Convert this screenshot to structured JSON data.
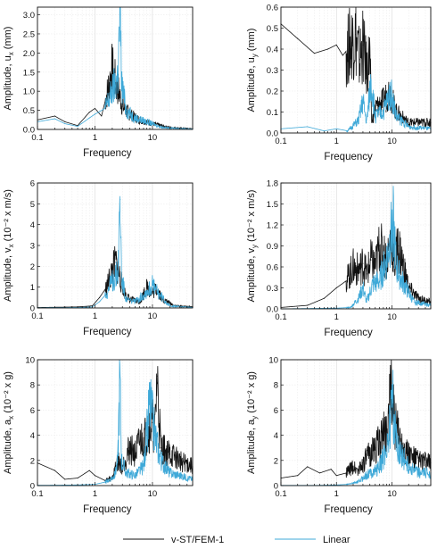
{
  "legend": [
    {
      "name": "v-ST/FEM-1",
      "color": "#111111"
    },
    {
      "name": "Linear",
      "color": "#3fa9d8"
    }
  ],
  "chart_data": [
    {
      "type": "line",
      "id": "ux",
      "ylabel": {
        "main": "Amplitude, u",
        "sub": "x",
        "unit": " (mm)"
      },
      "xlabel": "Frequency",
      "xscale": "log",
      "xlim": [
        0.1,
        50
      ],
      "ylim": [
        0,
        3.2
      ],
      "xticks": [
        "0.1",
        "1",
        "10"
      ],
      "yticks": [
        "0.0",
        "0.5",
        "1.0",
        "1.5",
        "2.0",
        "2.5",
        "3.0"
      ],
      "ytick_values": [
        0,
        0.5,
        1.0,
        1.5,
        2.0,
        2.5,
        3.0
      ],
      "grid": true,
      "series": [
        {
          "name": "v-ST/FEM-1",
          "points": [
            [
              0.1,
              0.25
            ],
            [
              0.2,
              0.35
            ],
            [
              0.3,
              0.2
            ],
            [
              0.5,
              0.1
            ],
            [
              0.8,
              0.45
            ],
            [
              1.0,
              0.55
            ],
            [
              1.3,
              0.35
            ],
            [
              1.6,
              0.9
            ],
            [
              2.0,
              1.6
            ],
            [
              2.3,
              1.2
            ],
            [
              2.6,
              1.0
            ],
            [
              3.0,
              0.6
            ],
            [
              4,
              0.4
            ],
            [
              6,
              0.25
            ],
            [
              10,
              0.15
            ],
            [
              20,
              0.05
            ],
            [
              50,
              0.02
            ]
          ]
        },
        {
          "name": "Linear",
          "points": [
            [
              0.1,
              0.2
            ],
            [
              0.2,
              0.28
            ],
            [
              0.3,
              0.15
            ],
            [
              0.5,
              0.08
            ],
            [
              0.8,
              0.3
            ],
            [
              1.0,
              0.4
            ],
            [
              1.5,
              0.55
            ],
            [
              2.0,
              1.0
            ],
            [
              2.5,
              1.4
            ],
            [
              2.75,
              3.05
            ],
            [
              2.9,
              1.2
            ],
            [
              3.5,
              0.5
            ],
            [
              5,
              0.3
            ],
            [
              8,
              0.2
            ],
            [
              15,
              0.05
            ],
            [
              50,
              0.01
            ]
          ]
        }
      ]
    },
    {
      "type": "line",
      "id": "uy",
      "ylabel": {
        "main": "Amplitude, u",
        "sub": "y",
        "unit": " (mm)"
      },
      "xlabel": "Frequency",
      "xscale": "log",
      "xlim": [
        0.1,
        50
      ],
      "ylim": [
        0,
        0.6
      ],
      "xticks": [
        "0.1",
        "1",
        "10"
      ],
      "yticks": [
        "0.0",
        "0.1",
        "0.2",
        "0.3",
        "0.4",
        "0.5",
        "0.6"
      ],
      "ytick_values": [
        0,
        0.1,
        0.2,
        0.3,
        0.4,
        0.5,
        0.6
      ],
      "grid": true,
      "series": [
        {
          "name": "v-ST/FEM-1",
          "points": [
            [
              0.1,
              0.52
            ],
            [
              0.2,
              0.45
            ],
            [
              0.4,
              0.38
            ],
            [
              0.7,
              0.4
            ],
            [
              1.0,
              0.42
            ],
            [
              1.3,
              0.37
            ],
            [
              1.6,
              0.4
            ],
            [
              2.2,
              0.47
            ],
            [
              2.6,
              0.35
            ],
            [
              3.0,
              0.42
            ],
            [
              3.5,
              0.3
            ],
            [
              4.0,
              0.37
            ],
            [
              4.3,
              0.05
            ],
            [
              5,
              0.12
            ],
            [
              7,
              0.15
            ],
            [
              9,
              0.2
            ],
            [
              12,
              0.1
            ],
            [
              20,
              0.05
            ],
            [
              50,
              0.05
            ]
          ]
        },
        {
          "name": "Linear",
          "points": [
            [
              0.1,
              0.02
            ],
            [
              0.3,
              0.03
            ],
            [
              0.6,
              0.01
            ],
            [
              1.0,
              0.02
            ],
            [
              1.6,
              0.01
            ],
            [
              2.5,
              0.06
            ],
            [
              3.0,
              0.15
            ],
            [
              3.5,
              0.05
            ],
            [
              4.2,
              0.25
            ],
            [
              5,
              0.08
            ],
            [
              7,
              0.1
            ],
            [
              9.5,
              0.2
            ],
            [
              12,
              0.08
            ],
            [
              20,
              0.03
            ],
            [
              50,
              0.02
            ]
          ]
        }
      ]
    },
    {
      "type": "line",
      "id": "vx",
      "ylabel": {
        "main": "Amplitude, v",
        "sub": "x",
        "unit": " (10⁻² x m/s)"
      },
      "xlabel": "Frequency",
      "xscale": "log",
      "xlim": [
        0.1,
        50
      ],
      "ylim": [
        0,
        6
      ],
      "xticks": [
        "0.1",
        "1",
        "10"
      ],
      "yticks": [
        "0",
        "1",
        "2",
        "3",
        "4",
        "5",
        "6"
      ],
      "ytick_values": [
        0,
        1,
        2,
        3,
        4,
        5,
        6
      ],
      "grid": true,
      "series": [
        {
          "name": "v-ST/FEM-1",
          "points": [
            [
              0.1,
              0.02
            ],
            [
              0.5,
              0.05
            ],
            [
              0.9,
              0.1
            ],
            [
              1.2,
              0.5
            ],
            [
              1.6,
              1.0
            ],
            [
              2.0,
              1.8
            ],
            [
              2.3,
              2.2
            ],
            [
              2.7,
              1.5
            ],
            [
              3.2,
              0.8
            ],
            [
              4,
              0.4
            ],
            [
              6,
              0.3
            ],
            [
              8,
              1.0
            ],
            [
              10,
              0.7
            ],
            [
              12,
              1.0
            ],
            [
              15,
              0.4
            ],
            [
              25,
              0.1
            ],
            [
              50,
              0.05
            ]
          ]
        },
        {
          "name": "Linear",
          "points": [
            [
              0.1,
              0.01
            ],
            [
              0.5,
              0.02
            ],
            [
              0.9,
              0.05
            ],
            [
              1.2,
              0.3
            ],
            [
              1.6,
              0.7
            ],
            [
              2.0,
              1.3
            ],
            [
              2.5,
              1.7
            ],
            [
              2.75,
              5.2
            ],
            [
              2.9,
              1.5
            ],
            [
              3.5,
              0.4
            ],
            [
              5,
              0.3
            ],
            [
              8,
              0.8
            ],
            [
              10,
              1.1
            ],
            [
              12,
              0.8
            ],
            [
              20,
              0.1
            ],
            [
              50,
              0.02
            ]
          ]
        }
      ]
    },
    {
      "type": "line",
      "id": "vy",
      "ylabel": {
        "main": "Amplitude, v",
        "sub": "y",
        "unit": " (10⁻² x m/s)"
      },
      "xlabel": "Frequency",
      "xscale": "log",
      "xlim": [
        0.1,
        50
      ],
      "ylim": [
        0,
        1.8
      ],
      "xticks": [
        "0.1",
        "1",
        "10"
      ],
      "yticks": [
        "0.0",
        "0.3",
        "0.6",
        "0.9",
        "1.2",
        "1.5",
        "1.8"
      ],
      "ytick_values": [
        0,
        0.3,
        0.6,
        0.9,
        1.2,
        1.5,
        1.8
      ],
      "grid": true,
      "series": [
        {
          "name": "v-ST/FEM-1",
          "points": [
            [
              0.1,
              0.02
            ],
            [
              0.3,
              0.05
            ],
            [
              0.6,
              0.15
            ],
            [
              1.0,
              0.3
            ],
            [
              1.5,
              0.4
            ],
            [
              2.0,
              0.6
            ],
            [
              2.5,
              0.55
            ],
            [
              3.0,
              0.65
            ],
            [
              3.5,
              0.5
            ],
            [
              4.2,
              0.7
            ],
            [
              5,
              0.6
            ],
            [
              6,
              0.9
            ],
            [
              8,
              0.7
            ],
            [
              10,
              1.05
            ],
            [
              11,
              0.6
            ],
            [
              13,
              0.9
            ],
            [
              20,
              0.3
            ],
            [
              30,
              0.15
            ],
            [
              50,
              0.1
            ]
          ]
        },
        {
          "name": "Linear",
          "points": [
            [
              0.1,
              0.0
            ],
            [
              1.0,
              0.01
            ],
            [
              1.8,
              0.02
            ],
            [
              2.5,
              0.15
            ],
            [
              3,
              0.3
            ],
            [
              3.5,
              0.1
            ],
            [
              4.5,
              0.35
            ],
            [
              6,
              0.4
            ],
            [
              8,
              0.7
            ],
            [
              10.5,
              1.25
            ],
            [
              12,
              0.6
            ],
            [
              15,
              0.4
            ],
            [
              25,
              0.1
            ],
            [
              50,
              0.05
            ]
          ]
        }
      ]
    },
    {
      "type": "line",
      "id": "ax",
      "ylabel": {
        "main": "Amplitude, a",
        "sub": "x",
        "unit": " (10⁻² x g)"
      },
      "xlabel": "Frequency",
      "xscale": "log",
      "xlim": [
        0.1,
        50
      ],
      "ylim": [
        0,
        10
      ],
      "xticks": [
        "0.1",
        "1",
        "10"
      ],
      "yticks": [
        "0",
        "2",
        "4",
        "6",
        "8",
        "10"
      ],
      "ytick_values": [
        0,
        2,
        4,
        6,
        8,
        10
      ],
      "grid": true,
      "series": [
        {
          "name": "v-ST/FEM-1",
          "points": [
            [
              0.1,
              1.8
            ],
            [
              0.2,
              1.2
            ],
            [
              0.3,
              0.5
            ],
            [
              0.5,
              0.6
            ],
            [
              0.8,
              1.2
            ],
            [
              1.0,
              0.8
            ],
            [
              1.5,
              0.4
            ],
            [
              2.0,
              0.6
            ],
            [
              2.5,
              2.0
            ],
            [
              3,
              1.5
            ],
            [
              4,
              3.0
            ],
            [
              5,
              2.5
            ],
            [
              6,
              3.5
            ],
            [
              8,
              4.0
            ],
            [
              10,
              5.0
            ],
            [
              11,
              4.0
            ],
            [
              12,
              8.7
            ],
            [
              14,
              3.0
            ],
            [
              20,
              2.5
            ],
            [
              30,
              2.0
            ],
            [
              50,
              1.5
            ]
          ]
        },
        {
          "name": "Linear",
          "points": [
            [
              0.1,
              0.02
            ],
            [
              0.5,
              0.05
            ],
            [
              1.0,
              0.1
            ],
            [
              1.6,
              0.3
            ],
            [
              2.2,
              0.8
            ],
            [
              2.5,
              2.0
            ],
            [
              2.7,
              8.8
            ],
            [
              2.9,
              2.0
            ],
            [
              3.5,
              1.0
            ],
            [
              5,
              0.8
            ],
            [
              7,
              1.5
            ],
            [
              9,
              6.5
            ],
            [
              11,
              4.0
            ],
            [
              14,
              2.0
            ],
            [
              20,
              1.0
            ],
            [
              50,
              0.5
            ]
          ]
        }
      ]
    },
    {
      "type": "line",
      "id": "ay",
      "ylabel": {
        "main": "Amplitude, a",
        "sub": "y",
        "unit": " (10⁻² x g)"
      },
      "xlabel": "Frequency",
      "xscale": "log",
      "xlim": [
        0.1,
        50
      ],
      "ylim": [
        0,
        10
      ],
      "xticks": [
        "0.1",
        "1",
        "10"
      ],
      "yticks": [
        "0",
        "2",
        "4",
        "6",
        "8",
        "10"
      ],
      "ytick_values": [
        0,
        2,
        4,
        6,
        8,
        10
      ],
      "grid": true,
      "series": [
        {
          "name": "v-ST/FEM-1",
          "points": [
            [
              0.1,
              0.6
            ],
            [
              0.2,
              0.8
            ],
            [
              0.3,
              1.5
            ],
            [
              0.5,
              1.0
            ],
            [
              0.8,
              1.3
            ],
            [
              1.0,
              0.8
            ],
            [
              1.5,
              1.0
            ],
            [
              2.0,
              1.5
            ],
            [
              2.5,
              1.2
            ],
            [
              3,
              1.8
            ],
            [
              4,
              2.5
            ],
            [
              5,
              3.0
            ],
            [
              6,
              3.5
            ],
            [
              8,
              4.5
            ],
            [
              9.5,
              7.0
            ],
            [
              10,
              8.0
            ],
            [
              11,
              5.0
            ],
            [
              13,
              4.0
            ],
            [
              20,
              2.5
            ],
            [
              30,
              2.0
            ],
            [
              50,
              1.8
            ]
          ]
        },
        {
          "name": "Linear",
          "points": [
            [
              0.1,
              0.02
            ],
            [
              0.5,
              0.02
            ],
            [
              1.0,
              0.05
            ],
            [
              1.6,
              0.1
            ],
            [
              2.5,
              0.3
            ],
            [
              3,
              0.6
            ],
            [
              4,
              1.0
            ],
            [
              5,
              1.2
            ],
            [
              6,
              1.5
            ],
            [
              8,
              3.0
            ],
            [
              9.5,
              5.0
            ],
            [
              10,
              8.3
            ],
            [
              11,
              4.5
            ],
            [
              13,
              3.0
            ],
            [
              20,
              1.5
            ],
            [
              30,
              1.0
            ],
            [
              50,
              1.0
            ]
          ]
        }
      ]
    }
  ]
}
